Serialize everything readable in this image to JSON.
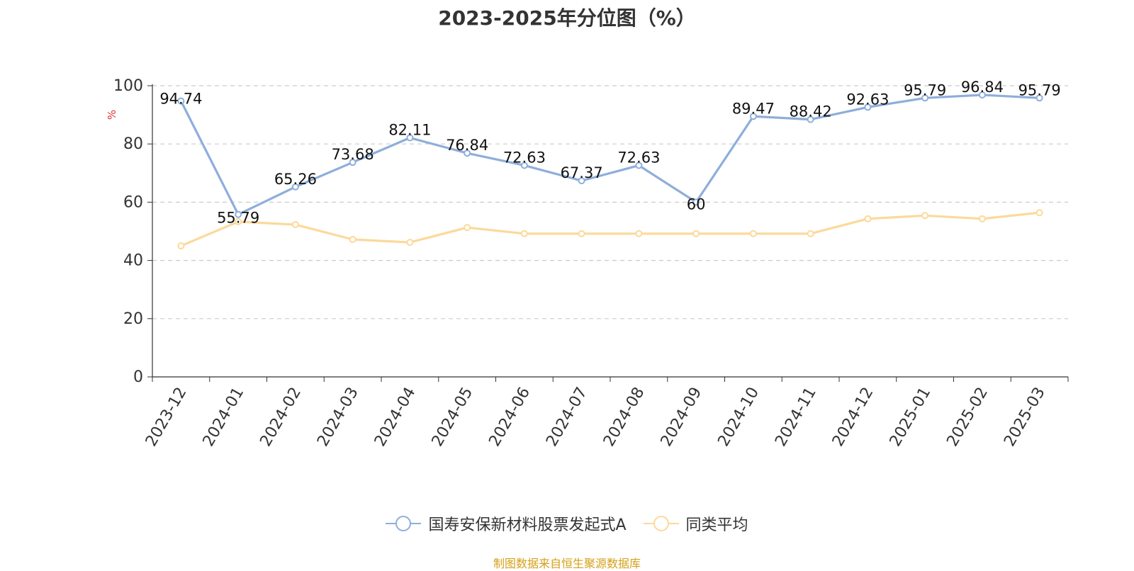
{
  "chart_data": {
    "type": "line",
    "title": "2023-2025年分位图（%）",
    "ylabel": "%",
    "xlabel": "",
    "ylim": [
      0,
      100
    ],
    "yticks": [
      "0",
      "20",
      "40",
      "60",
      "80",
      "100"
    ],
    "categories": [
      "2023-12",
      "2024-01",
      "2024-02",
      "2024-03",
      "2024-04",
      "2024-05",
      "2024-06",
      "2024-07",
      "2024-08",
      "2024-09",
      "2024-10",
      "2024-11",
      "2024-12",
      "2025-01",
      "2025-02",
      "2025-03"
    ],
    "series": [
      {
        "name": "国寿安保新材料股票发起式A",
        "color": "#8eaedb",
        "values": [
          94.74,
          55.79,
          65.26,
          73.68,
          82.11,
          76.84,
          72.63,
          67.37,
          72.63,
          60,
          89.47,
          88.42,
          92.63,
          95.79,
          96.84,
          95.79
        ],
        "labels": [
          "94.74",
          "55.79",
          "65.26",
          "73.68",
          "82.11",
          "76.84",
          "72.63",
          "67.37",
          "72.63",
          "60",
          "89.47",
          "88.42",
          "92.63",
          "95.79",
          "96.84",
          "95.79"
        ]
      },
      {
        "name": "同类平均",
        "color": "#fcd99a",
        "values": [
          45,
          53.3,
          52.3,
          47.2,
          46.2,
          51.3,
          49.2,
          49.2,
          49.2,
          49.2,
          49.2,
          49.2,
          54.3,
          55.4,
          54.3,
          56.4
        ]
      }
    ],
    "grid": "horizontal-dashed",
    "legend_position": "bottom",
    "source": "制图数据来自恒生聚源数据库"
  }
}
